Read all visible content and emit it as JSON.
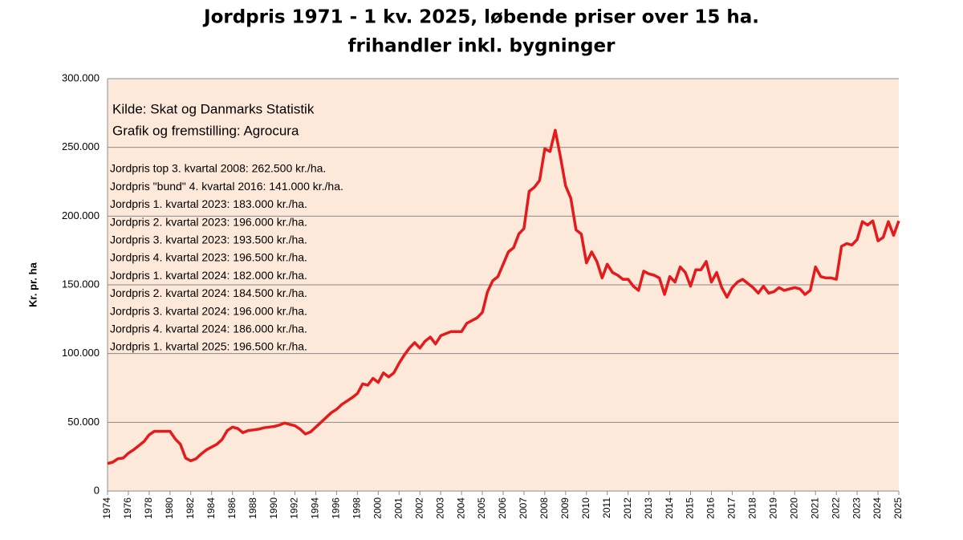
{
  "chart_data": {
    "type": "line",
    "title": "Jordpris 1971 - 1 kv. 2025, løbende priser over 15 ha.",
    "subtitle": "frihandler inkl. bygninger",
    "ylabel": "Kr. pr. ha",
    "source": [
      "Kilde: Skat og Danmarks Statistik",
      "Grafik og fremstilling: Agrocura"
    ],
    "annotations": [
      "Jordpris top 3. kvartal 2008: 262.500 kr./ha.",
      "Jordpris \"bund\" 4. kvartal 2016: 141.000 kr./ha.",
      "Jordpris 1. kvartal 2023: 183.000 kr./ha.",
      "Jordpris 2. kvartal 2023: 196.000 kr./ha.",
      "Jordpris 3. kvartal 2023: 193.500 kr./ha.",
      "Jordpris 4. kvartal 2023: 196.500 kr./ha.",
      "Jordpris 1. kvartal 2024: 182.000 kr./ha.",
      "Jordpris 2. kvartal 2024: 184.500 kr./ha.",
      "Jordpris 3. kvartal 2024: 196.000 kr./ha.",
      "Jordpris 4. kvartal 2024: 186.000 kr./ha.",
      "Jordpris 1. kvartal 2025: 196.500 kr./ha."
    ],
    "categories": [
      1974,
      null,
      null,
      null,
      1976,
      null,
      null,
      null,
      1978,
      null,
      null,
      null,
      1980,
      null,
      null,
      null,
      1982,
      null,
      null,
      null,
      1984,
      null,
      null,
      null,
      1986,
      null,
      null,
      null,
      1988,
      null,
      null,
      null,
      1990,
      null,
      null,
      null,
      1992,
      null,
      null,
      null,
      1994,
      null,
      null,
      null,
      1996,
      null,
      null,
      null,
      1998,
      null,
      null,
      null,
      2000,
      null,
      null,
      null,
      2001,
      null,
      null,
      null,
      2002,
      null,
      null,
      null,
      2003,
      null,
      null,
      null,
      2004,
      null,
      null,
      null,
      2005,
      null,
      null,
      null,
      2006,
      null,
      null,
      null,
      2007,
      null,
      null,
      null,
      2008,
      null,
      null,
      null,
      2009,
      null,
      null,
      null,
      2010,
      null,
      null,
      null,
      2011,
      null,
      null,
      null,
      2012,
      null,
      null,
      null,
      2013,
      null,
      null,
      null,
      2014,
      null,
      null,
      null,
      2015,
      null,
      null,
      null,
      2016,
      null,
      null,
      null,
      2017,
      null,
      null,
      null,
      2018,
      null,
      null,
      null,
      2019,
      null,
      null,
      null,
      2020,
      null,
      null,
      null,
      2021,
      null,
      null,
      null,
      2022,
      null,
      null,
      null,
      2023,
      null,
      null,
      null,
      2024,
      null,
      null,
      null,
      2025
    ],
    "series": [
      {
        "name": "Jordpris",
        "color": "#e41a1c",
        "values": [
          20000,
          21000,
          23500,
          24000,
          27500,
          30000,
          33000,
          36000,
          41000,
          43500,
          43500,
          43500,
          43500,
          38000,
          34000,
          24000,
          22000,
          23500,
          27000,
          30000,
          32000,
          34000,
          37500,
          44000,
          46500,
          45500,
          42500,
          44000,
          44500,
          45000,
          46000,
          46500,
          47000,
          48000,
          49500,
          48500,
          47500,
          45000,
          41500,
          43000,
          46500,
          50000,
          53500,
          57000,
          59500,
          63000,
          65500,
          68000,
          71000,
          78000,
          77000,
          82000,
          79000,
          86000,
          83000,
          86000,
          93000,
          99000,
          104000,
          108000,
          104000,
          109000,
          112000,
          107000,
          113000,
          114500,
          116000,
          116000,
          116000,
          122000,
          124000,
          126000,
          130000,
          145000,
          153000,
          156000,
          165000,
          174000,
          177000,
          187000,
          191000,
          218000,
          221000,
          226000,
          249000,
          247000,
          262500,
          243000,
          222000,
          213000,
          190000,
          187000,
          166000,
          174000,
          167000,
          155000,
          165000,
          159000,
          157000,
          154000,
          154000,
          149000,
          146000,
          160000,
          158000,
          157000,
          155000,
          143000,
          156000,
          152000,
          163000,
          159000,
          149000,
          161000,
          161000,
          167000,
          152000,
          159000,
          148000,
          141000,
          148000,
          152000,
          154000,
          151000,
          148000,
          144000,
          149000,
          144000,
          145000,
          148000,
          146000,
          147000,
          148000,
          147000,
          143000,
          146000,
          163000,
          156000,
          155000,
          155000,
          154000,
          178000,
          180000,
          179000,
          183000,
          196000,
          193500,
          196500,
          182000,
          184500,
          196000,
          186000,
          196500
        ]
      }
    ],
    "ylim": [
      0,
      300000
    ],
    "yticks": [
      0,
      {
        "value": 50000,
        "label": "50.000"
      },
      {
        "value": 100000,
        "label": "100.000"
      },
      {
        "value": 150000,
        "label": "150.000"
      },
      {
        "value": 200000,
        "label": "200.000"
      },
      {
        "value": 250000,
        "label": "250.000"
      },
      {
        "value": 300000,
        "label": "300.000"
      }
    ],
    "grid": true,
    "background": "#fde9d9"
  }
}
